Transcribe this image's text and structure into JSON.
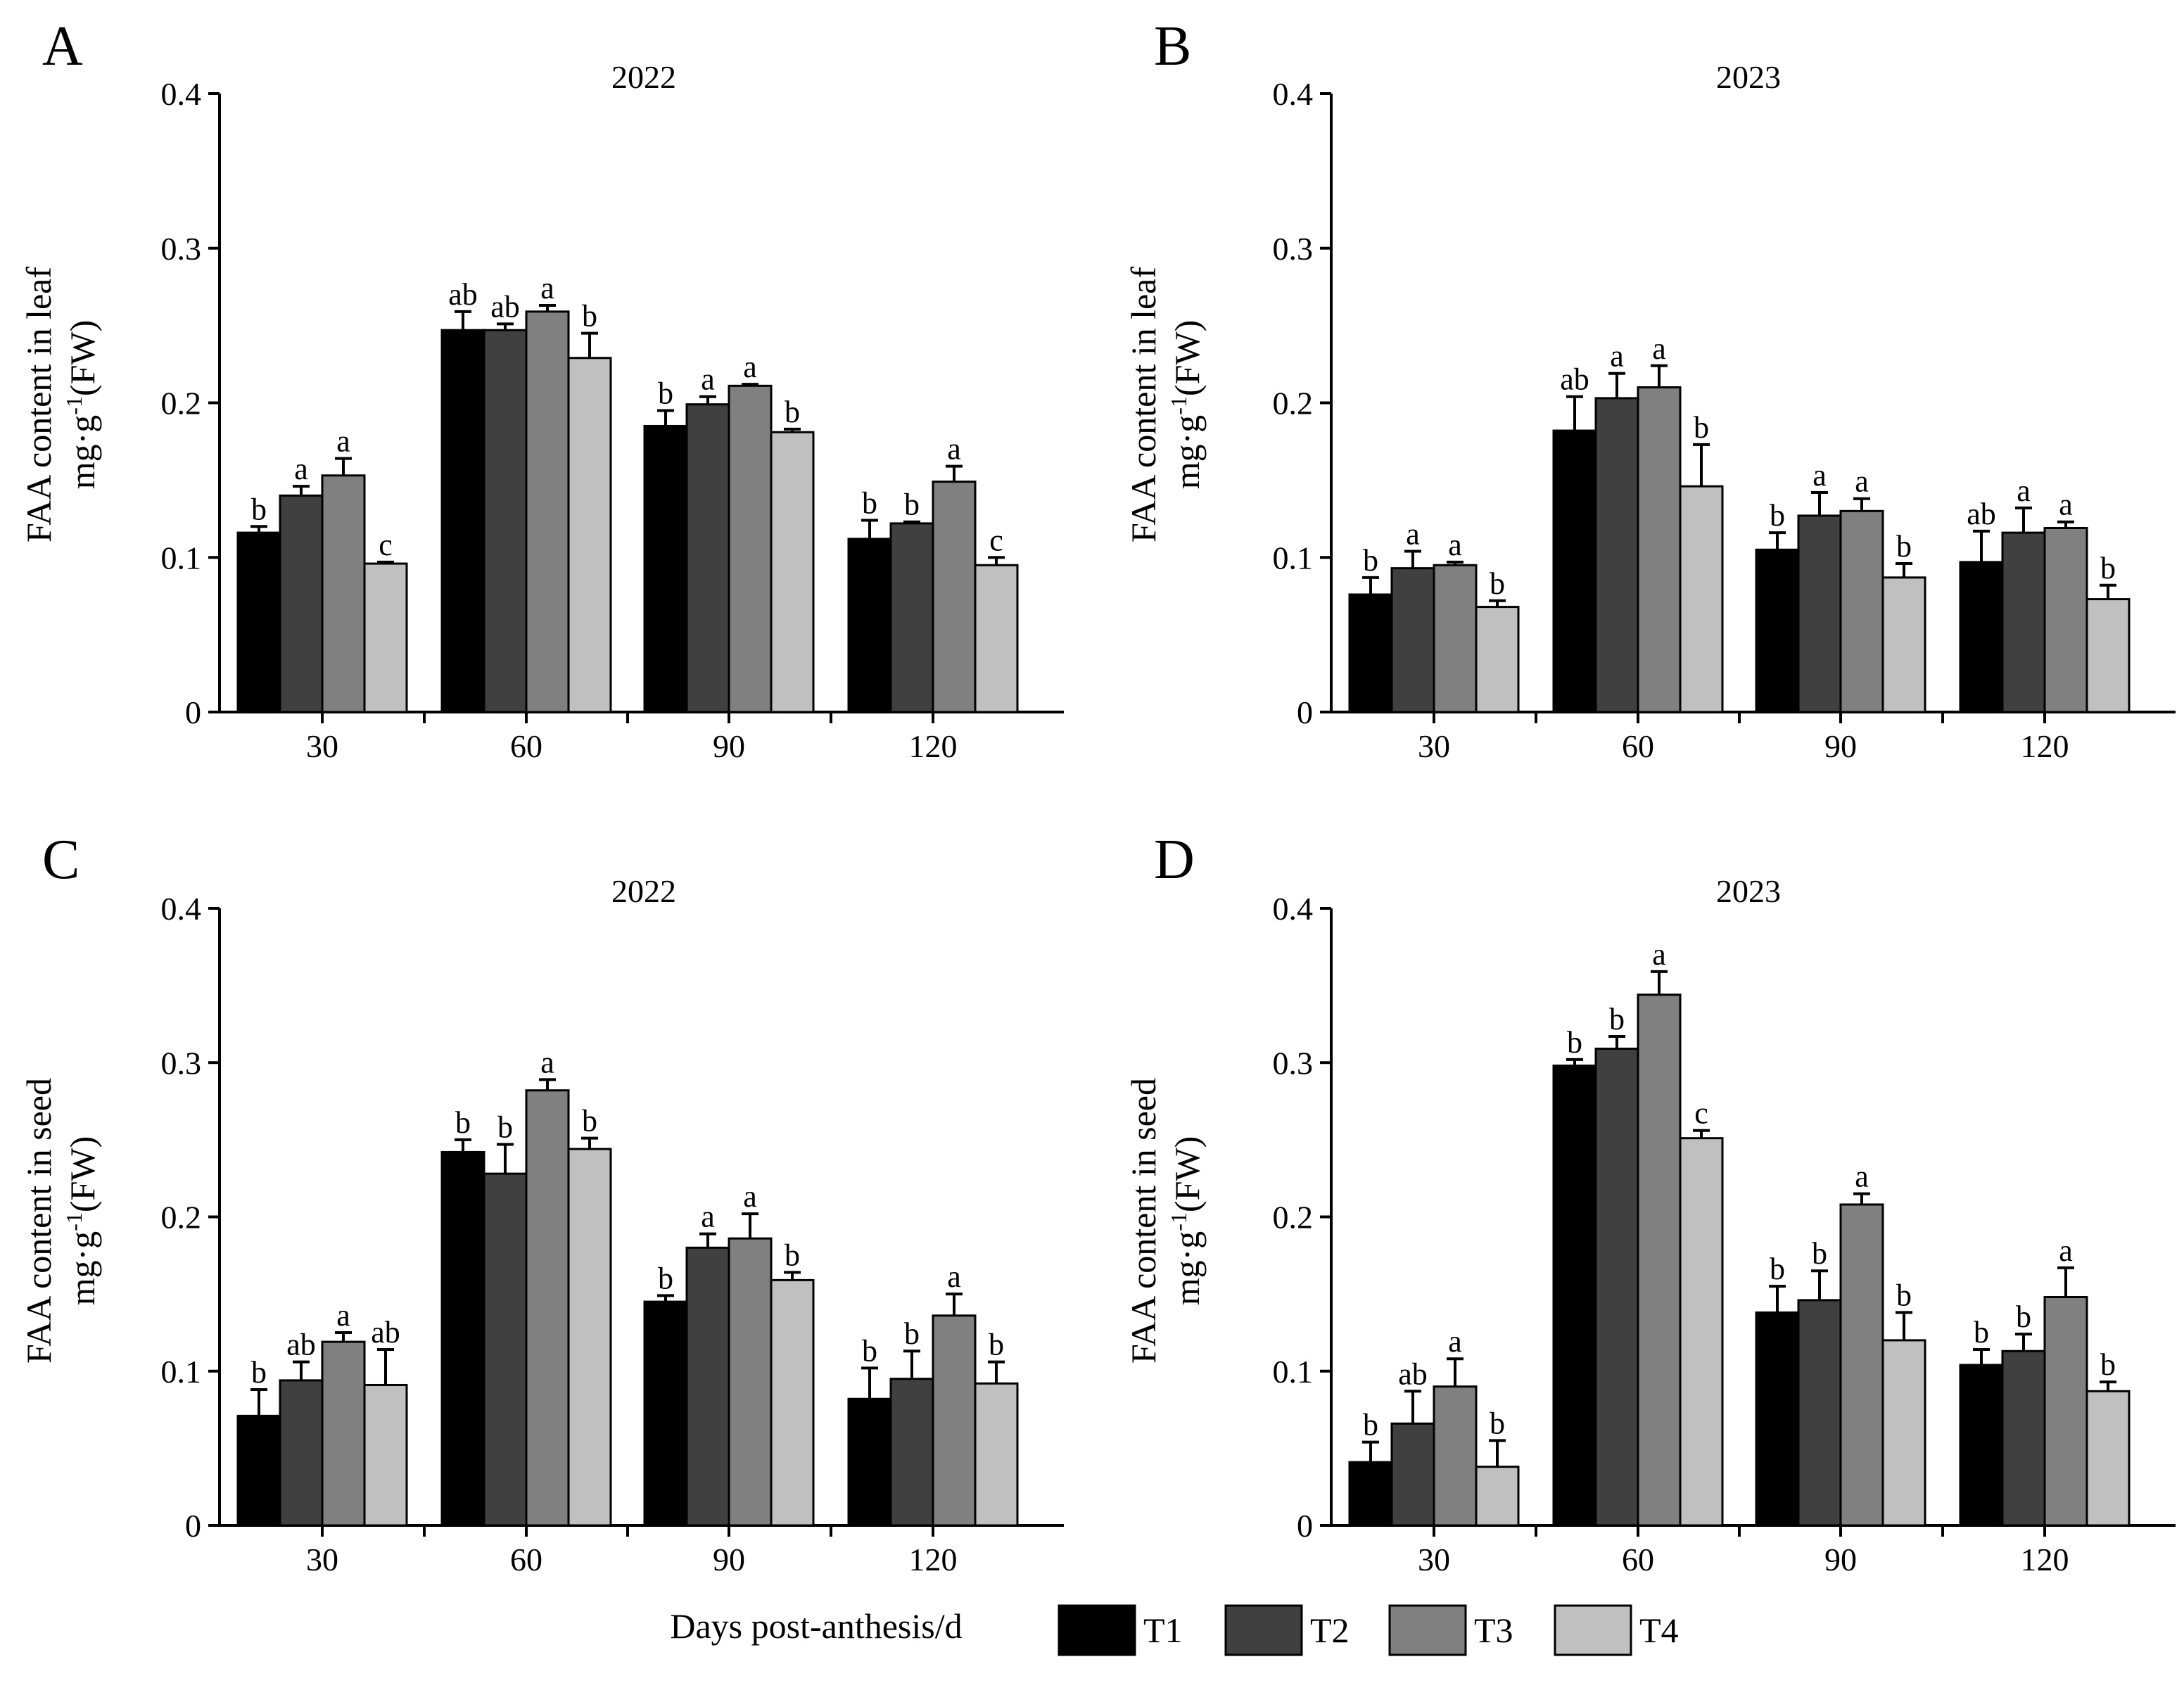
{
  "x_axis_label": "Days post-anthesis/d",
  "y_axis_label": {
    "leaf": "FAA content in leaf",
    "seed": "FAA content in seed",
    "unit_prefix": "mg·g",
    "unit_exp": "-1",
    "unit_suffix": "(FW)"
  },
  "legend": [
    {
      "name": "T1",
      "color": "#000000"
    },
    {
      "name": "T2",
      "color": "#404040"
    },
    {
      "name": "T3",
      "color": "#808080"
    },
    {
      "name": "T4",
      "color": "#c0c0c0"
    }
  ],
  "chart_data": [
    {
      "panel": "A",
      "type": "bar",
      "title": "2022",
      "organ": "leaf",
      "categories": [
        "30",
        "60",
        "90",
        "120"
      ],
      "ylim": [
        0,
        0.4
      ],
      "yticks": [
        "0",
        "0.1",
        "0.2",
        "0.3",
        "0.4"
      ],
      "series": [
        {
          "name": "T1",
          "values": [
            0.116,
            0.247,
            0.185,
            0.112
          ],
          "errors": [
            0.004,
            0.012,
            0.01,
            0.012
          ],
          "letters": [
            "b",
            "ab",
            "b",
            "b"
          ]
        },
        {
          "name": "T2",
          "values": [
            0.14,
            0.247,
            0.199,
            0.122
          ],
          "errors": [
            0.006,
            0.004,
            0.005,
            0.001
          ],
          "letters": [
            "a",
            "ab",
            "a",
            "b"
          ]
        },
        {
          "name": "T3",
          "values": [
            0.153,
            0.259,
            0.211,
            0.149
          ],
          "errors": [
            0.011,
            0.004,
            0.001,
            0.01
          ],
          "letters": [
            "a",
            "a",
            "a",
            "a"
          ]
        },
        {
          "name": "T4",
          "values": [
            0.096,
            0.229,
            0.181,
            0.095
          ],
          "errors": [
            0.001,
            0.016,
            0.002,
            0.005
          ],
          "letters": [
            "c",
            "b",
            "b",
            "c"
          ]
        }
      ]
    },
    {
      "panel": "B",
      "type": "bar",
      "title": "2023",
      "organ": "leaf",
      "categories": [
        "30",
        "60",
        "90",
        "120"
      ],
      "ylim": [
        0,
        0.4
      ],
      "yticks": [
        "0",
        "0.1",
        "0.2",
        "0.3",
        "0.4"
      ],
      "series": [
        {
          "name": "T1",
          "values": [
            0.076,
            0.182,
            0.105,
            0.097
          ],
          "errors": [
            0.011,
            0.022,
            0.011,
            0.02
          ],
          "letters": [
            "b",
            "ab",
            "b",
            "ab"
          ]
        },
        {
          "name": "T2",
          "values": [
            0.093,
            0.203,
            0.127,
            0.116
          ],
          "errors": [
            0.011,
            0.016,
            0.015,
            0.016
          ],
          "letters": [
            "a",
            "a",
            "a",
            "a"
          ]
        },
        {
          "name": "T3",
          "values": [
            0.095,
            0.21,
            0.13,
            0.119
          ],
          "errors": [
            0.002,
            0.014,
            0.008,
            0.004
          ],
          "letters": [
            "a",
            "a",
            "a",
            "a"
          ]
        },
        {
          "name": "T4",
          "values": [
            0.068,
            0.146,
            0.087,
            0.073
          ],
          "errors": [
            0.004,
            0.027,
            0.009,
            0.009
          ],
          "letters": [
            "b",
            "b",
            "b",
            "b"
          ]
        }
      ]
    },
    {
      "panel": "C",
      "type": "bar",
      "title": "2022",
      "organ": "seed",
      "categories": [
        "30",
        "60",
        "90",
        "120"
      ],
      "ylim": [
        0,
        0.4
      ],
      "yticks": [
        "0",
        "0.1",
        "0.2",
        "0.3",
        "0.4"
      ],
      "series": [
        {
          "name": "T1",
          "values": [
            0.071,
            0.242,
            0.145,
            0.082
          ],
          "errors": [
            0.017,
            0.008,
            0.004,
            0.02
          ],
          "letters": [
            "b",
            "b",
            "b",
            "b"
          ]
        },
        {
          "name": "T2",
          "values": [
            0.094,
            0.228,
            0.18,
            0.095
          ],
          "errors": [
            0.012,
            0.019,
            0.009,
            0.018
          ],
          "letters": [
            "ab",
            "b",
            "a",
            "b"
          ]
        },
        {
          "name": "T3",
          "values": [
            0.119,
            0.282,
            0.186,
            0.136
          ],
          "errors": [
            0.006,
            0.007,
            0.016,
            0.014
          ],
          "letters": [
            "a",
            "a",
            "a",
            "a"
          ]
        },
        {
          "name": "T4",
          "values": [
            0.091,
            0.244,
            0.159,
            0.092
          ],
          "errors": [
            0.023,
            0.007,
            0.005,
            0.014
          ],
          "letters": [
            "ab",
            "b",
            "b",
            "b"
          ]
        }
      ]
    },
    {
      "panel": "D",
      "type": "bar",
      "title": "2023",
      "organ": "seed",
      "categories": [
        "30",
        "60",
        "90",
        "120"
      ],
      "ylim": [
        0,
        0.4
      ],
      "yticks": [
        "0",
        "0.1",
        "0.2",
        "0.3",
        "0.4"
      ],
      "series": [
        {
          "name": "T1",
          "values": [
            0.041,
            0.298,
            0.138,
            0.104
          ],
          "errors": [
            0.013,
            0.004,
            0.017,
            0.01
          ],
          "letters": [
            "b",
            "b",
            "b",
            "b"
          ]
        },
        {
          "name": "T2",
          "values": [
            0.066,
            0.309,
            0.146,
            0.113
          ],
          "errors": [
            0.021,
            0.008,
            0.019,
            0.011
          ],
          "letters": [
            "ab",
            "b",
            "b",
            "b"
          ]
        },
        {
          "name": "T3",
          "values": [
            0.09,
            0.344,
            0.208,
            0.148
          ],
          "errors": [
            0.018,
            0.015,
            0.007,
            0.019
          ],
          "letters": [
            "a",
            "a",
            "a",
            "a"
          ]
        },
        {
          "name": "T4",
          "values": [
            0.038,
            0.251,
            0.12,
            0.087
          ],
          "errors": [
            0.017,
            0.005,
            0.018,
            0.006
          ],
          "letters": [
            "b",
            "c",
            "b",
            "b"
          ]
        }
      ]
    }
  ]
}
